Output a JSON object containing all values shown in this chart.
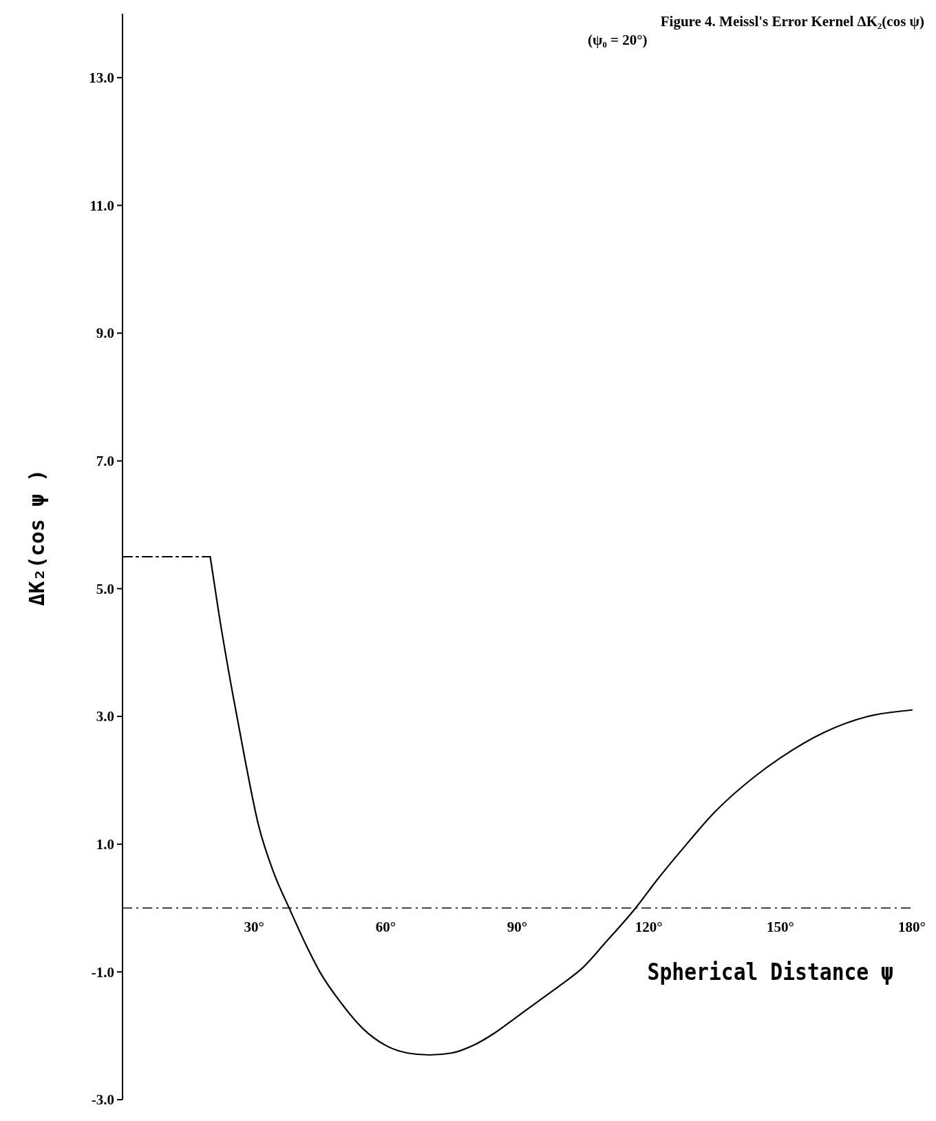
{
  "chart_data": {
    "type": "line",
    "title": "Figure 4.  Meissl's Error Kernel  ΔK₂(cos ψ)",
    "subtitle": "(ψ₀ = 20°)",
    "xlabel": "Spherical Distance ψ",
    "ylabel": "ΔK₂(cos ψ )",
    "xlim": [
      0,
      180
    ],
    "ylim": [
      -3,
      14
    ],
    "xticks": [
      {
        "value": 30,
        "label": "30°"
      },
      {
        "value": 60,
        "label": "60°"
      },
      {
        "value": 90,
        "label": "90°"
      },
      {
        "value": 120,
        "label": "120°"
      },
      {
        "value": 150,
        "label": "150°"
      },
      {
        "value": 180,
        "label": "180°"
      }
    ],
    "yticks": [
      {
        "value": -3,
        "label": "-3.0"
      },
      {
        "value": -1,
        "label": "-1.0"
      },
      {
        "value": 1,
        "label": "1.0"
      },
      {
        "value": 3,
        "label": "3.0"
      },
      {
        "value": 5,
        "label": "5.0"
      },
      {
        "value": 7,
        "label": "7.0"
      },
      {
        "value": 9,
        "label": "9.0"
      },
      {
        "value": 11,
        "label": "11.0"
      },
      {
        "value": 13,
        "label": "13.0"
      }
    ],
    "grid": false,
    "marker": "none",
    "ref_lines": [
      {
        "axis": "y",
        "value": 0,
        "label": null,
        "line_style": "dashed",
        "color": "#000000"
      }
    ],
    "series": [
      {
        "color": "#000000",
        "line_style": "dashed",
        "x": [
          0,
          20
        ],
        "values": [
          5.5,
          5.5
        ]
      },
      {
        "color": "#000000",
        "line_style": "solid",
        "x": [
          20,
          22,
          25,
          28,
          31,
          34.5,
          38,
          42,
          45,
          50,
          55,
          60,
          65,
          70,
          75,
          80,
          85,
          90,
          95,
          100,
          105,
          110,
          117,
          122,
          128,
          135,
          144,
          150,
          160,
          170,
          180
        ],
        "values": [
          5.5,
          4.6,
          3.4,
          2.3,
          1.3,
          0.55,
          0,
          -0.6,
          -1.0,
          -1.5,
          -1.9,
          -2.15,
          -2.27,
          -2.3,
          -2.27,
          -2.15,
          -1.95,
          -1.7,
          -1.45,
          -1.2,
          -0.93,
          -0.55,
          0,
          0.45,
          0.95,
          1.5,
          2.05,
          2.35,
          2.75,
          3.0,
          3.1
        ]
      }
    ]
  }
}
